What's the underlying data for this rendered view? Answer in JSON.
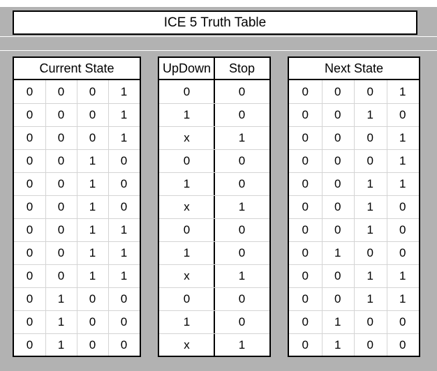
{
  "title": "ICE 5 Truth Table",
  "current_state": {
    "header": "Current State",
    "rows": [
      [
        "0",
        "0",
        "0",
        "1"
      ],
      [
        "0",
        "0",
        "0",
        "1"
      ],
      [
        "0",
        "0",
        "0",
        "1"
      ],
      [
        "0",
        "0",
        "1",
        "0"
      ],
      [
        "0",
        "0",
        "1",
        "0"
      ],
      [
        "0",
        "0",
        "1",
        "0"
      ],
      [
        "0",
        "0",
        "1",
        "1"
      ],
      [
        "0",
        "0",
        "1",
        "1"
      ],
      [
        "0",
        "0",
        "1",
        "1"
      ],
      [
        "0",
        "1",
        "0",
        "0"
      ],
      [
        "0",
        "1",
        "0",
        "0"
      ],
      [
        "0",
        "1",
        "0",
        "0"
      ]
    ]
  },
  "inputs": {
    "headers": [
      "UpDown",
      "Stop"
    ],
    "rows": [
      [
        "0",
        "0"
      ],
      [
        "1",
        "0"
      ],
      [
        "x",
        "1"
      ],
      [
        "0",
        "0"
      ],
      [
        "1",
        "0"
      ],
      [
        "x",
        "1"
      ],
      [
        "0",
        "0"
      ],
      [
        "1",
        "0"
      ],
      [
        "x",
        "1"
      ],
      [
        "0",
        "0"
      ],
      [
        "1",
        "0"
      ],
      [
        "x",
        "1"
      ]
    ]
  },
  "next_state": {
    "header": "Next State",
    "rows": [
      [
        "0",
        "0",
        "0",
        "1"
      ],
      [
        "0",
        "0",
        "1",
        "0"
      ],
      [
        "0",
        "0",
        "0",
        "1"
      ],
      [
        "0",
        "0",
        "0",
        "1"
      ],
      [
        "0",
        "0",
        "1",
        "1"
      ],
      [
        "0",
        "0",
        "1",
        "0"
      ],
      [
        "0",
        "0",
        "1",
        "0"
      ],
      [
        "0",
        "1",
        "0",
        "0"
      ],
      [
        "0",
        "0",
        "1",
        "1"
      ],
      [
        "0",
        "0",
        "1",
        "1"
      ],
      [
        "0",
        "1",
        "0",
        "0"
      ],
      [
        "0",
        "1",
        "0",
        "0"
      ]
    ]
  }
}
